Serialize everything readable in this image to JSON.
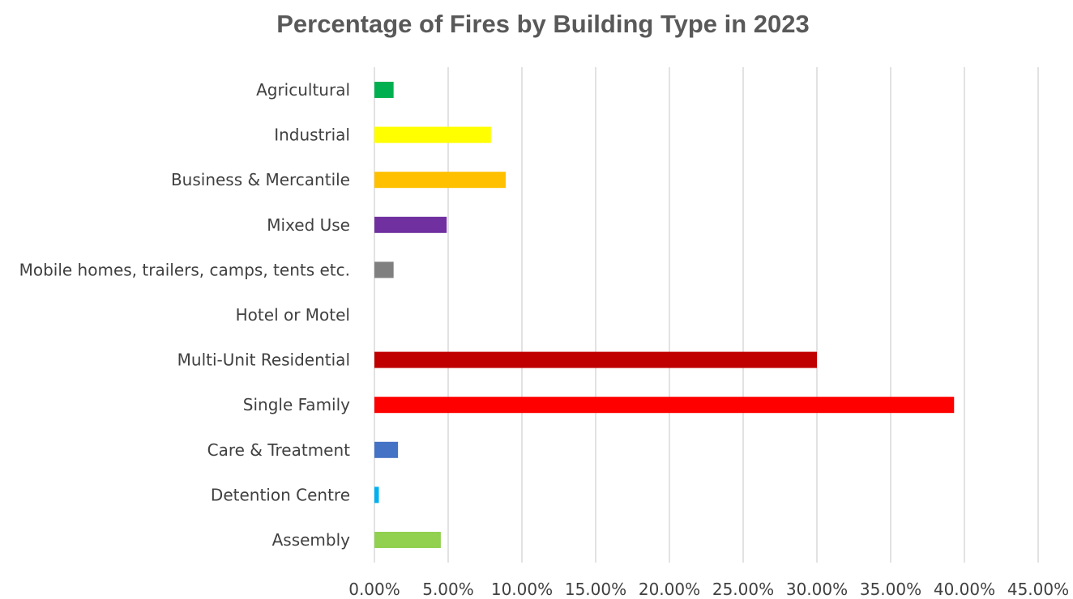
{
  "chart_data": {
    "type": "bar",
    "orientation": "horizontal",
    "title": "Percentage of Fires by Building Type in 2023",
    "xlabel": "",
    "ylabel": "",
    "xlim": [
      0,
      45
    ],
    "x_ticks": [
      0,
      5,
      10,
      15,
      20,
      25,
      30,
      35,
      40,
      45
    ],
    "x_tick_labels": [
      "0.00%",
      "5.00%",
      "10.00%",
      "15.00%",
      "20.00%",
      "25.00%",
      "30.00%",
      "35.00%",
      "40.00%",
      "45.00%"
    ],
    "grid": true,
    "legend": "none",
    "categories": [
      "Agricultural",
      "Industrial",
      "Business & Mercantile",
      "Mixed Use",
      "Mobile homes, trailers, camps, tents etc.",
      "Hotel or Motel",
      "Multi-Unit Residential",
      "Single Family",
      "Care & Treatment",
      "Detention Centre",
      "Assembly"
    ],
    "values": [
      1.3,
      7.9,
      8.9,
      4.9,
      1.3,
      0,
      30.0,
      39.3,
      1.6,
      0.3,
      4.5
    ],
    "colors": [
      "#00b050",
      "#ffff00",
      "#ffc000",
      "#7030a0",
      "#808080",
      "#808080",
      "#c00000",
      "#ff0000",
      "#4472c4",
      "#00b0f0",
      "#92d050"
    ]
  }
}
